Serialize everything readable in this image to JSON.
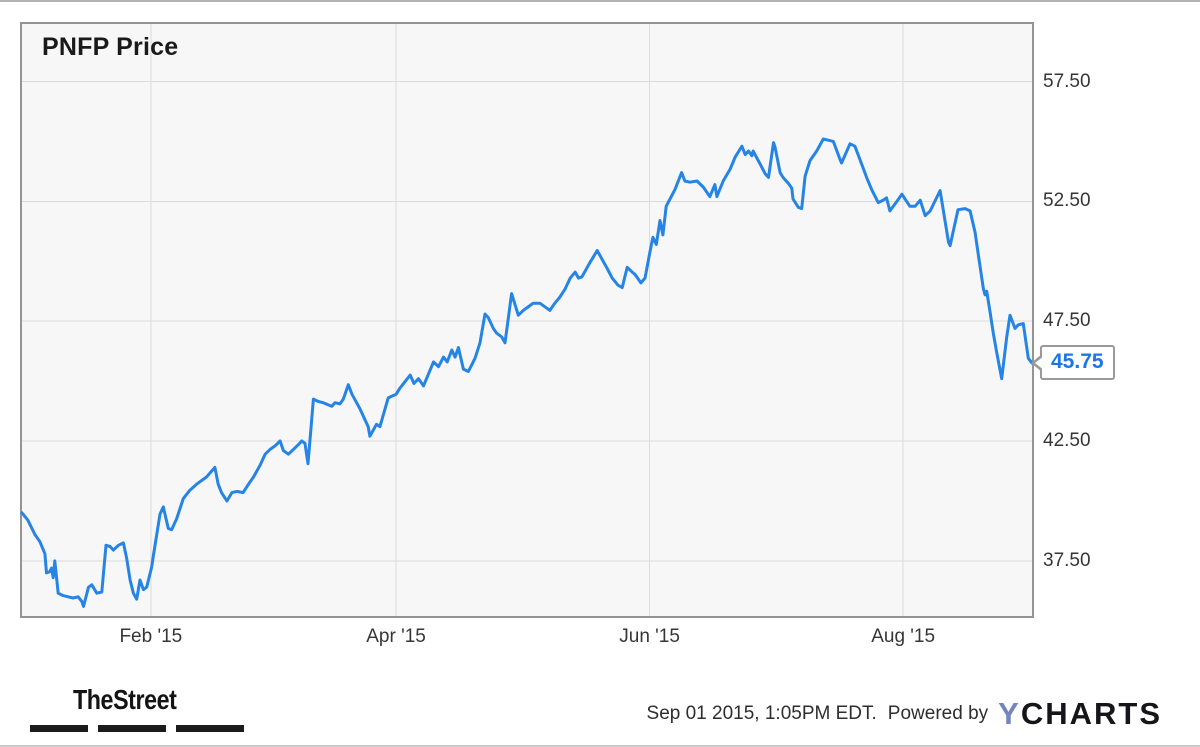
{
  "chart": {
    "title": "PNFP Price",
    "last_price_label": "45.75"
  },
  "footer": {
    "thestreet_logo": "TheStreet",
    "timestamp": "Sep 01 2015, 1:05PM EDT.",
    "powered_by": "Powered by",
    "ycharts_logo_y": "Y",
    "ycharts_logo_rest": "CHARTS"
  },
  "colors": {
    "line": "#2584e4",
    "gridline": "#dbdbdb",
    "plot_background": "#f7f7f7",
    "frame_border": "#949494",
    "callout_text": "#1c77e4",
    "axis_text": "#363636",
    "ycharts_y_blue": "#7386bb"
  },
  "chart_data": {
    "type": "line",
    "title": "PNFP Price",
    "xlabel": "",
    "ylabel": "",
    "grid": true,
    "legend": "none",
    "x_unit": "days since Jan 1 2015",
    "xlim_days": [
      0,
      243
    ],
    "ylim": [
      35.2,
      59.9
    ],
    "x_ticks": [
      {
        "label": "Feb '15",
        "day": 31
      },
      {
        "label": "Apr '15",
        "day": 90
      },
      {
        "label": "Jun '15",
        "day": 151
      },
      {
        "label": "Aug '15",
        "day": 212
      }
    ],
    "y_ticks": [
      {
        "label": "57.50",
        "value": 57.5
      },
      {
        "label": "52.50",
        "value": 52.5
      },
      {
        "label": "47.50",
        "value": 47.5
      },
      {
        "label": "42.50",
        "value": 42.5
      },
      {
        "label": "37.50",
        "value": 37.5
      }
    ],
    "annotation": {
      "label": "45.75",
      "value": 45.75
    },
    "series": [
      {
        "name": "PNFP Price",
        "points": [
          [
            0,
            39.5
          ],
          [
            1.4,
            39.2
          ],
          [
            3.1,
            38.6
          ],
          [
            4.3,
            38.3
          ],
          [
            5.5,
            37.8
          ],
          [
            5.9,
            37.0
          ],
          [
            6.7,
            37.05
          ],
          [
            7.1,
            37.2
          ],
          [
            7.5,
            36.8
          ],
          [
            7.9,
            37.5
          ],
          [
            8.7,
            36.15
          ],
          [
            9.9,
            36.05
          ],
          [
            11.1,
            36.0
          ],
          [
            12.3,
            35.95
          ],
          [
            13.5,
            36.0
          ],
          [
            14.4,
            35.8
          ],
          [
            14.8,
            35.6
          ],
          [
            16,
            36.4
          ],
          [
            16.8,
            36.5
          ],
          [
            18,
            36.15
          ],
          [
            19.2,
            36.2
          ],
          [
            20.2,
            38.15
          ],
          [
            21.2,
            38.1
          ],
          [
            22,
            37.95
          ],
          [
            23.2,
            38.15
          ],
          [
            24.4,
            38.25
          ],
          [
            25.2,
            37.6
          ],
          [
            26,
            36.7
          ],
          [
            26.8,
            36.15
          ],
          [
            27.6,
            35.9
          ],
          [
            28.4,
            36.7
          ],
          [
            29.2,
            36.3
          ],
          [
            30,
            36.4
          ],
          [
            31.2,
            37.25
          ],
          [
            31.6,
            37.7
          ],
          [
            33.2,
            39.45
          ],
          [
            34,
            39.75
          ],
          [
            35.2,
            38.85
          ],
          [
            36,
            38.8
          ],
          [
            37.2,
            39.25
          ],
          [
            38.8,
            40.1
          ],
          [
            40.4,
            40.45
          ],
          [
            42,
            40.7
          ],
          [
            44.4,
            41.0
          ],
          [
            46.4,
            41.4
          ],
          [
            47.2,
            40.7
          ],
          [
            48,
            40.35
          ],
          [
            49.3,
            40.0
          ],
          [
            50.5,
            40.35
          ],
          [
            51.7,
            40.4
          ],
          [
            53.2,
            40.35
          ],
          [
            54.5,
            40.7
          ],
          [
            55.7,
            41.0
          ],
          [
            57.3,
            41.5
          ],
          [
            58.5,
            41.95
          ],
          [
            59.7,
            42.15
          ],
          [
            60.9,
            42.3
          ],
          [
            62.1,
            42.5
          ],
          [
            62.9,
            42.1
          ],
          [
            64.1,
            41.95
          ],
          [
            65.3,
            42.15
          ],
          [
            66.5,
            42.35
          ],
          [
            67.3,
            42.5
          ],
          [
            68.1,
            42.4
          ],
          [
            68.8,
            41.55
          ],
          [
            70.1,
            44.25
          ],
          [
            71.3,
            44.15
          ],
          [
            72.5,
            44.1
          ],
          [
            74.5,
            43.95
          ],
          [
            75.3,
            44.1
          ],
          [
            76.5,
            44.05
          ],
          [
            77.3,
            44.25
          ],
          [
            78.5,
            44.85
          ],
          [
            79.4,
            44.45
          ],
          [
            81.3,
            43.85
          ],
          [
            83.3,
            43.1
          ],
          [
            83.7,
            42.7
          ],
          [
            85.3,
            43.2
          ],
          [
            86.1,
            43.1
          ],
          [
            88.1,
            44.3
          ],
          [
            90,
            44.45
          ],
          [
            90.9,
            44.7
          ],
          [
            93.4,
            45.25
          ],
          [
            94.3,
            44.9
          ],
          [
            95.4,
            45.1
          ],
          [
            96.6,
            44.8
          ],
          [
            99,
            45.8
          ],
          [
            100.2,
            45.6
          ],
          [
            101.4,
            46.0
          ],
          [
            102.3,
            45.8
          ],
          [
            103.4,
            46.3
          ],
          [
            104.2,
            46.0
          ],
          [
            105,
            46.4
          ],
          [
            106.2,
            45.5
          ],
          [
            107.4,
            45.4
          ],
          [
            109,
            45.95
          ],
          [
            110.2,
            46.6
          ],
          [
            111.4,
            47.8
          ],
          [
            112.2,
            47.65
          ],
          [
            113.4,
            47.2
          ],
          [
            114.2,
            47.0
          ],
          [
            115.4,
            46.85
          ],
          [
            116.2,
            46.6
          ],
          [
            117.8,
            48.65
          ],
          [
            119.4,
            47.75
          ],
          [
            120.6,
            47.95
          ],
          [
            122.2,
            48.15
          ],
          [
            123,
            48.25
          ],
          [
            124.6,
            48.25
          ],
          [
            125.8,
            48.1
          ],
          [
            127,
            47.95
          ],
          [
            128.2,
            48.25
          ],
          [
            129.4,
            48.5
          ],
          [
            130.7,
            48.85
          ],
          [
            131.9,
            49.3
          ],
          [
            133.1,
            49.55
          ],
          [
            133.9,
            49.3
          ],
          [
            134.7,
            49.35
          ],
          [
            136.5,
            49.9
          ],
          [
            138.4,
            50.45
          ],
          [
            140.8,
            49.7
          ],
          [
            142,
            49.3
          ],
          [
            143.4,
            49.0
          ],
          [
            144.4,
            48.9
          ],
          [
            145.6,
            49.75
          ],
          [
            146.8,
            49.55
          ],
          [
            147.5,
            49.45
          ],
          [
            148.9,
            49.1
          ],
          [
            149.9,
            49.3
          ],
          [
            151.1,
            50.4
          ],
          [
            151.8,
            51.0
          ],
          [
            152.6,
            50.7
          ],
          [
            153.5,
            51.7
          ],
          [
            154.2,
            51.1
          ],
          [
            155,
            52.3
          ],
          [
            155.9,
            52.6
          ],
          [
            157.1,
            53.0
          ],
          [
            158.7,
            53.7
          ],
          [
            159.5,
            53.35
          ],
          [
            160.7,
            53.3
          ],
          [
            162.4,
            53.35
          ],
          [
            163.9,
            53.1
          ],
          [
            165.5,
            52.7
          ],
          [
            166.7,
            53.2
          ],
          [
            167.2,
            52.7
          ],
          [
            168.7,
            53.35
          ],
          [
            170.4,
            53.85
          ],
          [
            171.6,
            54.35
          ],
          [
            173.2,
            54.8
          ],
          [
            174,
            54.45
          ],
          [
            174.8,
            54.6
          ],
          [
            175.6,
            54.4
          ],
          [
            175.9,
            54.6
          ],
          [
            177.6,
            54.05
          ],
          [
            178.8,
            53.65
          ],
          [
            179.6,
            53.5
          ],
          [
            180.8,
            54.95
          ],
          [
            181.2,
            54.75
          ],
          [
            182.4,
            53.7
          ],
          [
            183.1,
            53.5
          ],
          [
            184.4,
            53.25
          ],
          [
            185.2,
            53.05
          ],
          [
            185.5,
            52.6
          ],
          [
            186.8,
            52.25
          ],
          [
            187.6,
            52.2
          ],
          [
            188.4,
            53.55
          ],
          [
            189.6,
            54.2
          ],
          [
            191.2,
            54.6
          ],
          [
            192.8,
            55.1
          ],
          [
            194,
            55.05
          ],
          [
            195.2,
            55.0
          ],
          [
            196.8,
            54.25
          ],
          [
            197.2,
            54.1
          ],
          [
            199.2,
            54.9
          ],
          [
            200.4,
            54.8
          ],
          [
            201.6,
            54.25
          ],
          [
            203.2,
            53.5
          ],
          [
            204.4,
            53.0
          ],
          [
            206,
            52.45
          ],
          [
            207.2,
            52.55
          ],
          [
            208,
            52.65
          ],
          [
            208.8,
            52.1
          ],
          [
            210.5,
            52.5
          ],
          [
            211.7,
            52.8
          ],
          [
            213.6,
            52.3
          ],
          [
            214.9,
            52.3
          ],
          [
            216.1,
            52.55
          ],
          [
            217.3,
            51.9
          ],
          [
            218.5,
            52.1
          ],
          [
            220.9,
            52.95
          ],
          [
            222.9,
            50.8
          ],
          [
            223.3,
            50.65
          ],
          [
            225.2,
            52.15
          ],
          [
            226.9,
            52.2
          ],
          [
            228.1,
            52.1
          ],
          [
            229.3,
            51.2
          ],
          [
            230.1,
            50.25
          ],
          [
            231.3,
            48.85
          ],
          [
            231.7,
            48.6
          ],
          [
            232.1,
            48.75
          ],
          [
            232.9,
            47.9
          ],
          [
            233.7,
            47.0
          ],
          [
            234.5,
            46.2
          ],
          [
            235.7,
            45.1
          ],
          [
            236.9,
            46.8
          ],
          [
            237.7,
            47.75
          ],
          [
            238.9,
            47.2
          ],
          [
            239.7,
            47.35
          ],
          [
            240.9,
            47.4
          ],
          [
            242.1,
            45.95
          ],
          [
            243,
            45.75
          ]
        ]
      }
    ]
  }
}
